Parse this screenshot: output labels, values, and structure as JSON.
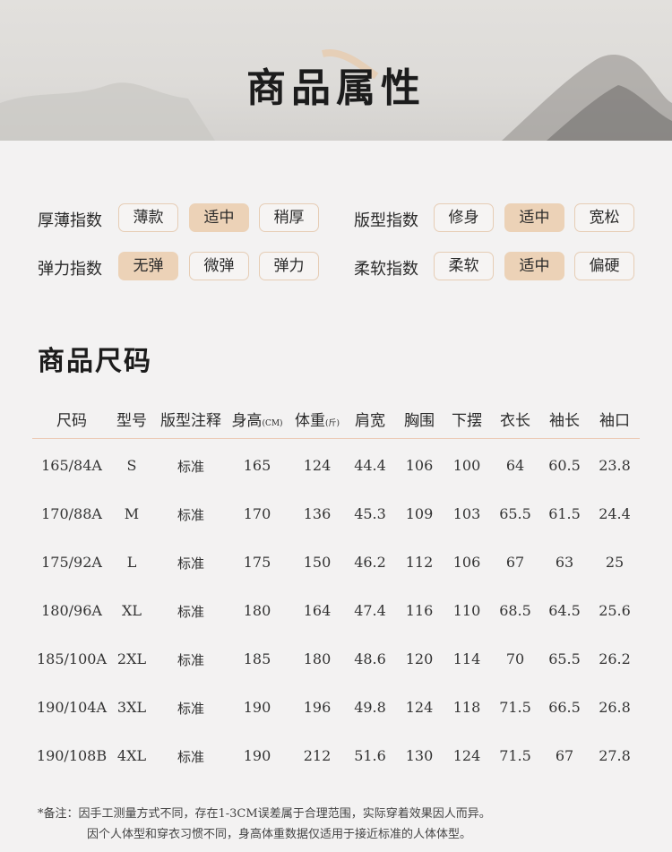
{
  "banner": {
    "title": "商品属性"
  },
  "attributes": [
    {
      "label": "厚薄指数",
      "options": [
        "薄款",
        "适中",
        "稍厚"
      ],
      "selected": "适中"
    },
    {
      "label": "版型指数",
      "options": [
        "修身",
        "适中",
        "宽松"
      ],
      "selected": "适中"
    },
    {
      "label": "弹力指数",
      "options": [
        "无弹",
        "微弹",
        "弹力"
      ],
      "selected": "无弹"
    },
    {
      "label": "柔软指数",
      "options": [
        "柔软",
        "适中",
        "偏硬"
      ],
      "selected": "适中"
    }
  ],
  "size_section": {
    "title": "商品尺码",
    "headers": [
      "尺码",
      "型号",
      "版型注释",
      "身高",
      "体重",
      "肩宽",
      "胸围",
      "下摆",
      "衣长",
      "袖长",
      "袖口"
    ],
    "header_units": {
      "3": "(CM)",
      "4": "(斤)"
    },
    "rows": [
      [
        "165/84A",
        "S",
        "标准",
        "165",
        "124",
        "44.4",
        "106",
        "100",
        "64",
        "60.5",
        "23.8"
      ],
      [
        "170/88A",
        "M",
        "标准",
        "170",
        "136",
        "45.3",
        "109",
        "103",
        "65.5",
        "61.5",
        "24.4"
      ],
      [
        "175/92A",
        "L",
        "标准",
        "175",
        "150",
        "46.2",
        "112",
        "106",
        "67",
        "63",
        "25"
      ],
      [
        "180/96A",
        "XL",
        "标准",
        "180",
        "164",
        "47.4",
        "116",
        "110",
        "68.5",
        "64.5",
        "25.6"
      ],
      [
        "185/100A",
        "2XL",
        "标准",
        "185",
        "180",
        "48.6",
        "120",
        "114",
        "70",
        "65.5",
        "26.2"
      ],
      [
        "190/104A",
        "3XL",
        "标准",
        "190",
        "196",
        "49.8",
        "124",
        "118",
        "71.5",
        "66.5",
        "26.8"
      ],
      [
        "190/108B",
        "4XL",
        "标准",
        "190",
        "212",
        "51.6",
        "130",
        "124",
        "71.5",
        "67",
        "27.8"
      ]
    ]
  },
  "notes": [
    "*备注：因手工测量方式不同，存在1-3CM误差属于合理范围，实际穿着效果因人而异。",
    "因个人体型和穿衣习惯不同，身高体重数据仅适用于接近标准的人体体型。"
  ],
  "colors": {
    "accent": "#ecd2b7",
    "chip_border": "#e6cdb5",
    "background": "#f3f2f2"
  }
}
